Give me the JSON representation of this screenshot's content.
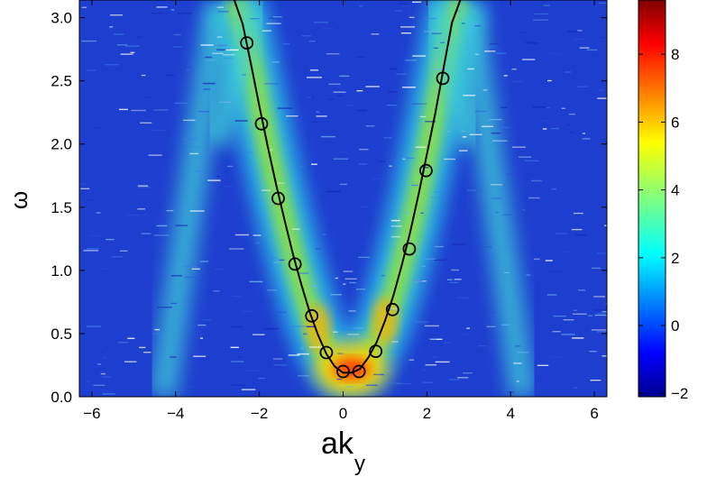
{
  "chart_data": {
    "type": "heatmap",
    "xlabel": "ak",
    "xlabel_sub": "y",
    "ylabel": "ω",
    "xlim": [
      -6.3,
      6.3
    ],
    "ylim": [
      0,
      3.14
    ],
    "xticks": [
      -6,
      -4,
      -2,
      0,
      2,
      4,
      6
    ],
    "yticks": [
      0.0,
      0.5,
      1.0,
      1.5,
      2.0,
      2.5,
      3.0
    ],
    "xtick_labels": [
      "−6",
      "−4",
      "−2",
      "0",
      "2",
      "4",
      "6"
    ],
    "ytick_labels": [
      "0.0",
      "0.5",
      "1.0",
      "1.5",
      "2.0",
      "2.5",
      "3.0"
    ],
    "colorbar": {
      "range": [
        -2.1,
        9.6
      ],
      "ticks": [
        -2,
        0,
        2,
        4,
        6,
        8
      ],
      "tick_labels": [
        "−2",
        "0",
        "2",
        "4",
        "6",
        "8"
      ],
      "colormap": "jet"
    },
    "series": [
      {
        "type": "scatter",
        "marker": "open-circle",
        "x": [
          -2.3,
          -1.95,
          -1.55,
          -1.15,
          -0.75,
          -0.4,
          0.0,
          0.38,
          0.78,
          1.18,
          1.58,
          1.98,
          2.38
        ],
        "y": [
          2.8,
          2.16,
          1.57,
          1.05,
          0.64,
          0.35,
          0.2,
          0.2,
          0.36,
          0.69,
          1.17,
          1.79,
          2.52
        ]
      },
      {
        "type": "line",
        "x": [
          -2.6,
          -2.4,
          -2.2,
          -2.0,
          -1.8,
          -1.6,
          -1.4,
          -1.2,
          -1.0,
          -0.8,
          -0.6,
          -0.4,
          -0.2,
          0.0,
          0.2,
          0.4,
          0.6,
          0.8,
          1.0,
          1.2,
          1.4,
          1.6,
          1.8,
          2.0,
          2.2,
          2.4,
          2.6,
          2.8
        ],
        "y": [
          3.14,
          2.95,
          2.63,
          2.3,
          1.98,
          1.68,
          1.4,
          1.13,
          0.89,
          0.67,
          0.49,
          0.34,
          0.24,
          0.19,
          0.19,
          0.22,
          0.31,
          0.43,
          0.6,
          0.8,
          1.04,
          1.3,
          1.6,
          1.92,
          2.24,
          2.6,
          2.96,
          3.14
        ]
      }
    ],
    "colors": {
      "curve": "#000000",
      "marker": "#000000",
      "background_low": "#1a2cc8"
    }
  }
}
